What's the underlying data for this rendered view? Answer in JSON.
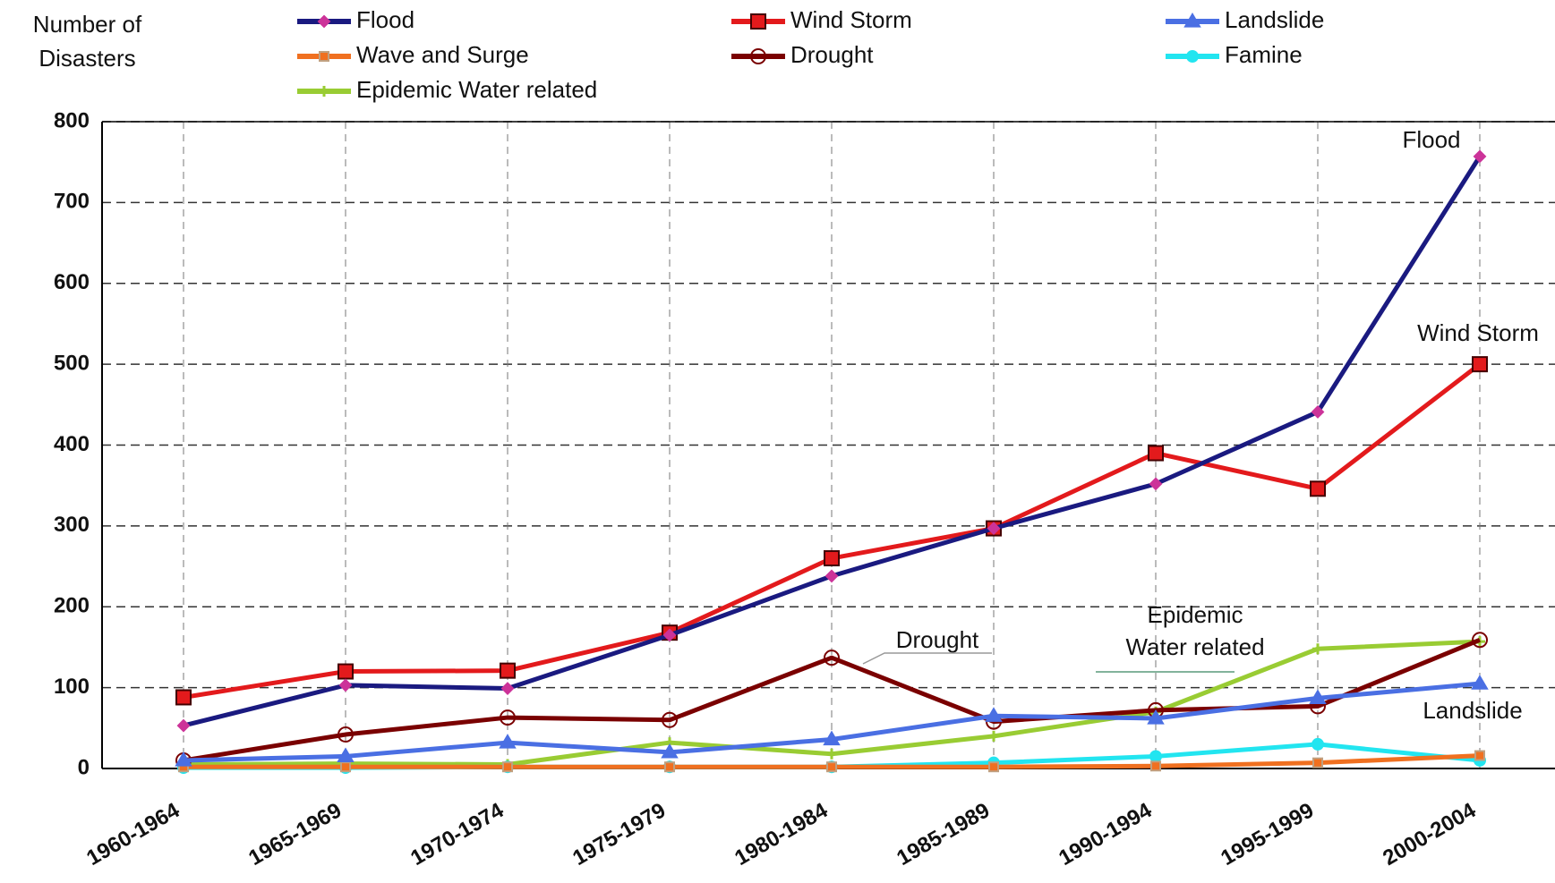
{
  "chart_data": {
    "type": "line",
    "ylabel": "Number of Disasters",
    "categories": [
      "1960-1964",
      "1965-1969",
      "1970-1974",
      "1975-1979",
      "1980-1984",
      "1985-1989",
      "1990-1994",
      "1995-1999",
      "2000-2004"
    ],
    "series": [
      {
        "name": "Flood",
        "color": "#1a1a80",
        "values": [
          53,
          103,
          99,
          165,
          238,
          297,
          352,
          441,
          757
        ]
      },
      {
        "name": "Wind Storm",
        "color": "#e31a1c",
        "values": [
          88,
          120,
          121,
          168,
          260,
          297,
          390,
          346,
          500
        ]
      },
      {
        "name": "Landslide",
        "color": "#4a6fe3",
        "values": [
          10,
          15,
          32,
          20,
          36,
          65,
          62,
          87,
          105
        ]
      },
      {
        "name": "Wave and Surge",
        "color": "#f07020",
        "values": [
          2,
          2,
          2,
          2,
          2,
          2,
          3,
          7,
          16
        ]
      },
      {
        "name": "Drought",
        "color": "#7a0000",
        "values": [
          10,
          42,
          63,
          60,
          137,
          58,
          72,
          77,
          159
        ]
      },
      {
        "name": "Famine",
        "color": "#22e5f0",
        "values": [
          1,
          1,
          2,
          2,
          2,
          7,
          15,
          30,
          10
        ]
      },
      {
        "name": "Epidemic Water related",
        "color": "#99cc33",
        "values": [
          5,
          6,
          5,
          32,
          18,
          40,
          70,
          148,
          157
        ]
      }
    ],
    "annotations": [
      "Flood",
      "Wind Storm",
      "Drought",
      "Epidemic",
      "Water related",
      "Landslide"
    ],
    "ylim": [
      0,
      800
    ],
    "yticks": [
      0,
      100,
      200,
      300,
      400,
      500,
      600,
      700,
      800
    ],
    "grid": true
  }
}
